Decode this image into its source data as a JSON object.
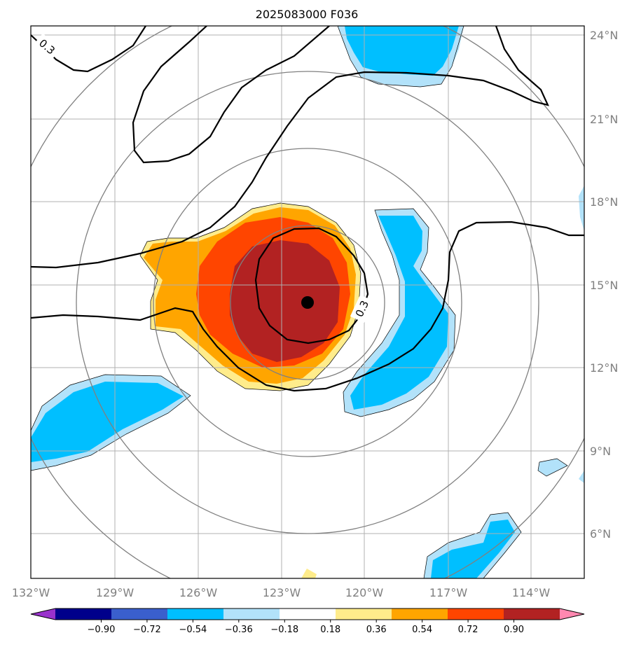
{
  "title": "2025083000 F036",
  "lon_labels": [
    "132°W",
    "129°W",
    "126°W",
    "123°W",
    "120°W",
    "117°W",
    "114°W"
  ],
  "lat_labels": [
    "24°N",
    "21°N",
    "18°N",
    "15°N",
    "12°N",
    "9°N",
    "6°N"
  ],
  "contour_labels": [
    "0.3",
    "0.3"
  ],
  "colorbar": {
    "ticks": [
      "−0.90",
      "−0.72",
      "−0.54",
      "−0.36",
      "−0.18",
      "0.18",
      "0.36",
      "0.54",
      "0.72",
      "0.90"
    ],
    "colors": [
      "#9932CC",
      "#00008B",
      "#3A5FCD",
      "#00BFFF",
      "#B2E2FA",
      "#FFFFFF",
      "#FFEC8B",
      "#FFA500",
      "#FF4500",
      "#B22222",
      "#FF88B0"
    ]
  },
  "colors": {
    "neg_light": "#B2E2FA",
    "neg_mid": "#00BFFF",
    "pos_light": "#FFEC8B",
    "pos_orange": "#FFA500",
    "pos_red": "#FF4500",
    "pos_dark": "#B22222",
    "range_rings": "#808080",
    "grid": "#B0B0B0"
  }
}
